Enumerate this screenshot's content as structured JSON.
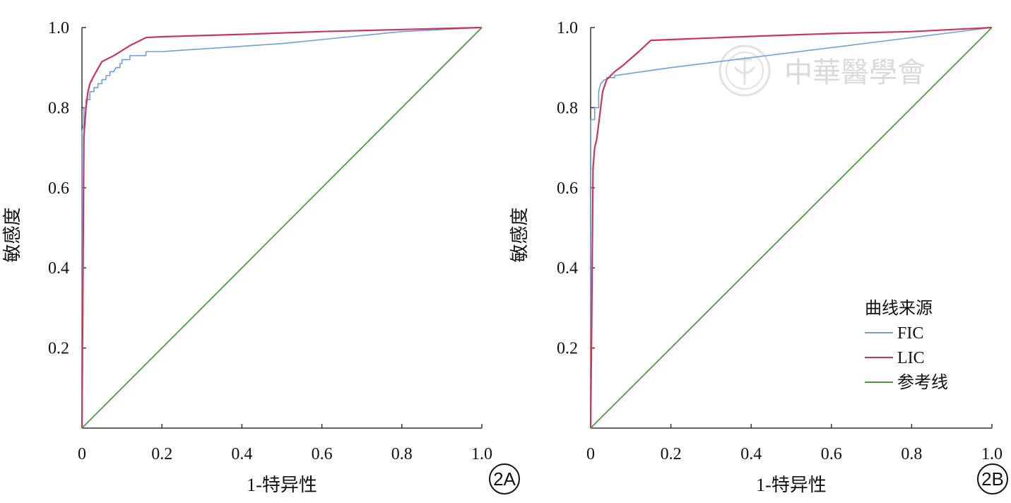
{
  "colors": {
    "FIC": "#6f9fd8",
    "LIC": "#c8375b",
    "reference": "#4f9a45",
    "axis": "#333333",
    "watermark": "#c9c9c9"
  },
  "watermark": {
    "text": "中華醫學會"
  },
  "chart_data": [
    {
      "type": "line",
      "panel_label": "2A",
      "xlabel": "1-特异性",
      "ylabel": "敏感度",
      "xlim": [
        0,
        1
      ],
      "ylim": [
        0,
        1
      ],
      "x_ticks": [
        0,
        0.2,
        0.4,
        0.6,
        0.8,
        1.0
      ],
      "x_tick_labels": [
        "0",
        "0.2",
        "0.4",
        "0.6",
        "0.8",
        "1.0"
      ],
      "y_ticks": [
        0.2,
        0.4,
        0.6,
        0.8,
        1.0
      ],
      "y_tick_labels": [
        "0.2",
        "0.4",
        "0.6",
        "0.8",
        "1.0"
      ],
      "grid": false,
      "legend": null,
      "series": [
        {
          "name": "FIC",
          "color_key": "FIC",
          "points": [
            [
              0,
              0
            ],
            [
              0,
              0.74
            ],
            [
              0.005,
              0.76
            ],
            [
              0.005,
              0.8
            ],
            [
              0.01,
              0.8
            ],
            [
              0.01,
              0.82
            ],
            [
              0.02,
              0.82
            ],
            [
              0.02,
              0.84
            ],
            [
              0.03,
              0.84
            ],
            [
              0.03,
              0.85
            ],
            [
              0.04,
              0.85
            ],
            [
              0.04,
              0.86
            ],
            [
              0.05,
              0.86
            ],
            [
              0.05,
              0.87
            ],
            [
              0.06,
              0.87
            ],
            [
              0.06,
              0.88
            ],
            [
              0.07,
              0.88
            ],
            [
              0.07,
              0.89
            ],
            [
              0.08,
              0.89
            ],
            [
              0.085,
              0.9
            ],
            [
              0.095,
              0.9
            ],
            [
              0.095,
              0.91
            ],
            [
              0.1,
              0.91
            ],
            [
              0.1,
              0.92
            ],
            [
              0.12,
              0.92
            ],
            [
              0.12,
              0.93
            ],
            [
              0.16,
              0.93
            ],
            [
              0.16,
              0.94
            ],
            [
              0.2,
              0.94
            ],
            [
              0.35,
              0.95
            ],
            [
              0.5,
              0.96
            ],
            [
              0.6,
              0.97
            ],
            [
              0.7,
              0.98
            ],
            [
              0.8,
              0.99
            ],
            [
              1.0,
              1.0
            ]
          ]
        },
        {
          "name": "LIC",
          "color_key": "LIC",
          "points": [
            [
              0,
              0
            ],
            [
              0.005,
              0.73
            ],
            [
              0.01,
              0.8
            ],
            [
              0.015,
              0.84
            ],
            [
              0.02,
              0.86
            ],
            [
              0.03,
              0.88
            ],
            [
              0.05,
              0.915
            ],
            [
              0.08,
              0.93
            ],
            [
              0.12,
              0.955
            ],
            [
              0.16,
              0.975
            ],
            [
              0.2,
              0.977
            ],
            [
              0.4,
              0.983
            ],
            [
              0.6,
              0.99
            ],
            [
              0.8,
              0.995
            ],
            [
              1.0,
              1.0
            ]
          ]
        },
        {
          "name": "参考线",
          "color_key": "reference",
          "points": [
            [
              0,
              0
            ],
            [
              1,
              1
            ]
          ]
        }
      ]
    },
    {
      "type": "line",
      "panel_label": "2B",
      "xlabel": "1-特异性",
      "ylabel": "敏感度",
      "xlim": [
        0,
        1
      ],
      "ylim": [
        0,
        1
      ],
      "x_ticks": [
        0,
        0.2,
        0.4,
        0.6,
        0.8,
        1.0
      ],
      "x_tick_labels": [
        "0",
        "0.2",
        "0.4",
        "0.6",
        "0.8",
        "1.0"
      ],
      "y_ticks": [
        0.2,
        0.4,
        0.6,
        0.8,
        1.0
      ],
      "y_tick_labels": [
        "0.2",
        "0.4",
        "0.6",
        "0.8",
        "1.0"
      ],
      "grid": false,
      "legend": {
        "title": "曲线来源",
        "placement": "bottom-right",
        "entries": [
          {
            "label": "FIC",
            "color_key": "FIC"
          },
          {
            "label": "LIC",
            "color_key": "LIC"
          },
          {
            "label": "参考线",
            "color_key": "reference"
          }
        ]
      },
      "series": [
        {
          "name": "FIC",
          "color_key": "FIC",
          "points": [
            [
              0,
              0
            ],
            [
              0,
              0.77
            ],
            [
              0.01,
              0.77
            ],
            [
              0.01,
              0.8
            ],
            [
              0.02,
              0.8
            ],
            [
              0.02,
              0.84
            ],
            [
              0.025,
              0.86
            ],
            [
              0.035,
              0.87
            ],
            [
              0.04,
              0.87
            ],
            [
              0.04,
              0.875
            ],
            [
              0.06,
              0.875
            ],
            [
              0.06,
              0.88
            ],
            [
              0.2,
              0.9
            ],
            [
              0.4,
              0.925
            ],
            [
              0.6,
              0.95
            ],
            [
              0.8,
              0.975
            ],
            [
              1.0,
              1.0
            ]
          ]
        },
        {
          "name": "LIC",
          "color_key": "LIC",
          "points": [
            [
              0,
              0
            ],
            [
              0.003,
              0.3
            ],
            [
              0.006,
              0.65
            ],
            [
              0.01,
              0.7
            ],
            [
              0.015,
              0.72
            ],
            [
              0.02,
              0.76
            ],
            [
              0.025,
              0.8
            ],
            [
              0.03,
              0.84
            ],
            [
              0.04,
              0.87
            ],
            [
              0.06,
              0.89
            ],
            [
              0.08,
              0.905
            ],
            [
              0.12,
              0.94
            ],
            [
              0.15,
              0.968
            ],
            [
              0.2,
              0.97
            ],
            [
              0.4,
              0.978
            ],
            [
              0.6,
              0.985
            ],
            [
              0.8,
              0.99
            ],
            [
              1.0,
              1.0
            ]
          ]
        },
        {
          "name": "参考线",
          "color_key": "reference",
          "points": [
            [
              0,
              0
            ],
            [
              1,
              1
            ]
          ]
        }
      ]
    }
  ]
}
